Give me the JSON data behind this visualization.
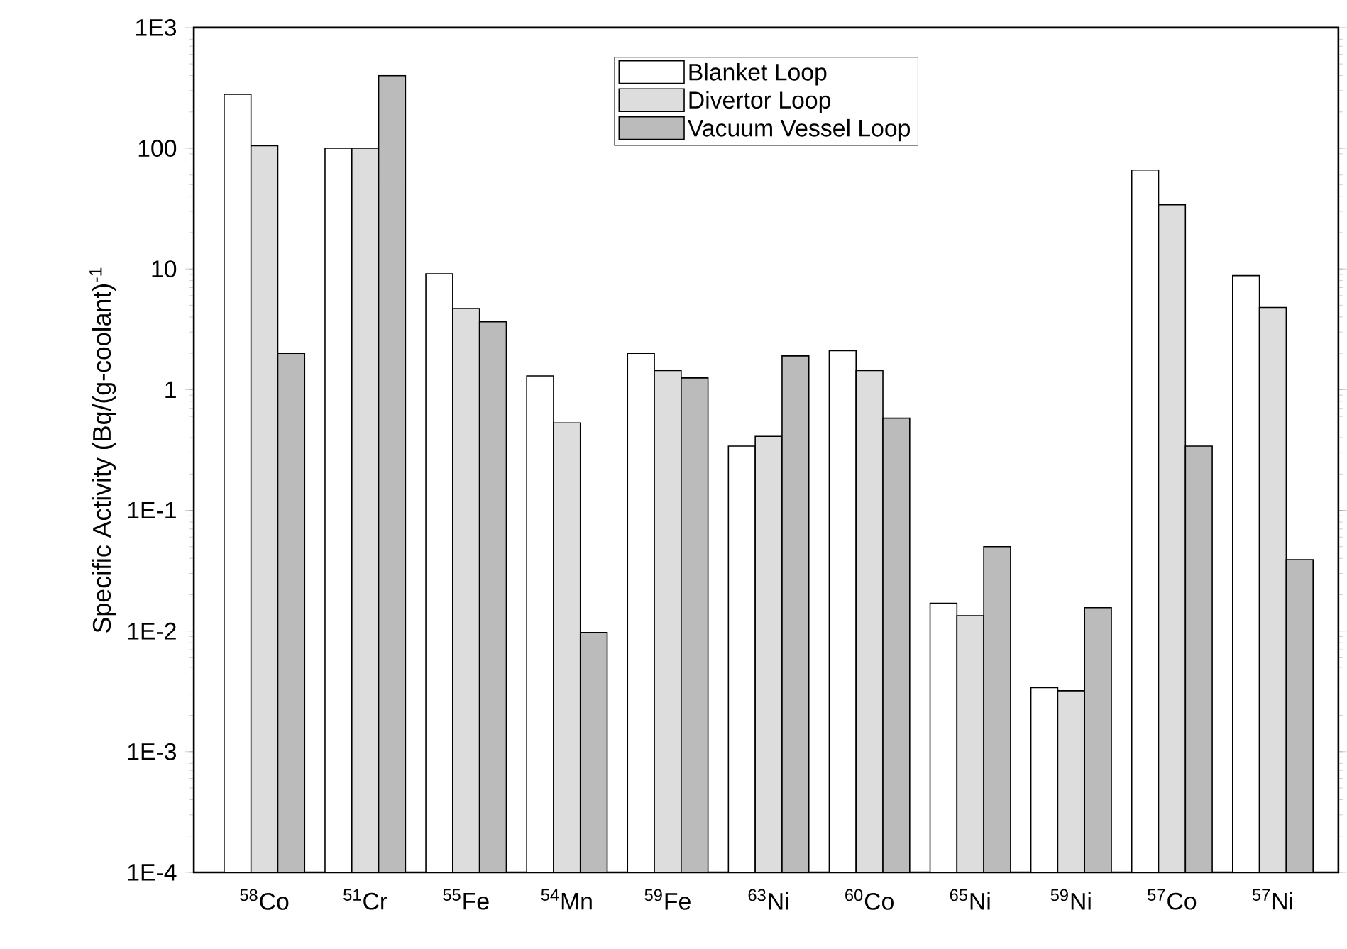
{
  "chart_data": {
    "type": "bar",
    "ylabel": "Specific Activity (Bq/(g-coolant)$^{-1}$",
    "log": true,
    "legend": "top",
    "categories": [
      "$^{58}$Co",
      "$^{51}$Cr",
      "$^{55}$Fe",
      "$^{54}$Mn",
      "$^{59}$Fe",
      "$^{63}$Ni",
      "$^{60}$Co",
      "$^{65}$Ni",
      "$^{59}$Ni",
      "$^{57}$Co",
      "$^{57}$Ni"
    ],
    "ylim": [
      0.0001,
      1000
    ],
    "yticks": [
      {
        "value": 0.0001,
        "label": "1E-4"
      },
      {
        "value": 0.001,
        "label": "1E-3"
      },
      {
        "value": 0.01,
        "label": "1E-2"
      },
      {
        "value": 0.1,
        "label": "1E-1"
      },
      1,
      10,
      100,
      {
        "value": 1000,
        "label": "1E3"
      }
    ],
    "series": [
      {
        "name": "Blanket Loop",
        "color": "#ffffff",
        "values": [
          280,
          100,
          9.1,
          1.3,
          2.0,
          0.34,
          2.1,
          0.017,
          0.0034,
          66,
          8.8
        ]
      },
      {
        "name": "Divertor Loop",
        "color": "#dddddd",
        "values": [
          105,
          100,
          4.7,
          0.53,
          1.44,
          0.41,
          1.44,
          0.0134,
          0.0032,
          34,
          4.8
        ]
      },
      {
        "name": "Vacuum Vessel Loop",
        "color": "#bbbbbb",
        "values": [
          2.0,
          400,
          3.65,
          0.0097,
          1.25,
          1.9,
          0.58,
          0.05,
          0.0156,
          0.34,
          0.039
        ]
      }
    ]
  }
}
